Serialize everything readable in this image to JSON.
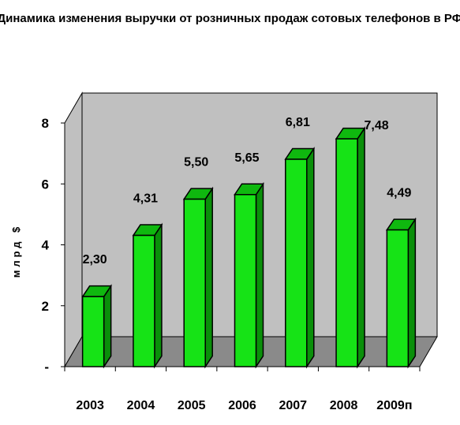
{
  "colors": {
    "bar_front": "#16e316",
    "bar_side": "#0a8f0a",
    "bar_top": "#0fb80f",
    "wall": "#c0c0c0",
    "floor": "#8a8a8a"
  },
  "chart_data": {
    "type": "bar",
    "title": "Динамика изменения выручки от розничных продаж сотовых телефонов в РФ",
    "xlabel": "",
    "ylabel": "млрд $",
    "categories": [
      "2003",
      "2004",
      "2005",
      "2006",
      "2007",
      "2008",
      "2009п"
    ],
    "values": [
      2.3,
      4.31,
      5.5,
      5.65,
      6.81,
      7.48,
      4.49
    ],
    "data_labels": [
      "2,30",
      "4,31",
      "5,50",
      "5,65",
      "6,81",
      "7,48",
      "4,49"
    ],
    "yticks": [
      "-",
      "2",
      "4",
      "6",
      "8"
    ],
    "ylim": [
      0,
      8
    ],
    "grid": false,
    "legend": "none"
  }
}
